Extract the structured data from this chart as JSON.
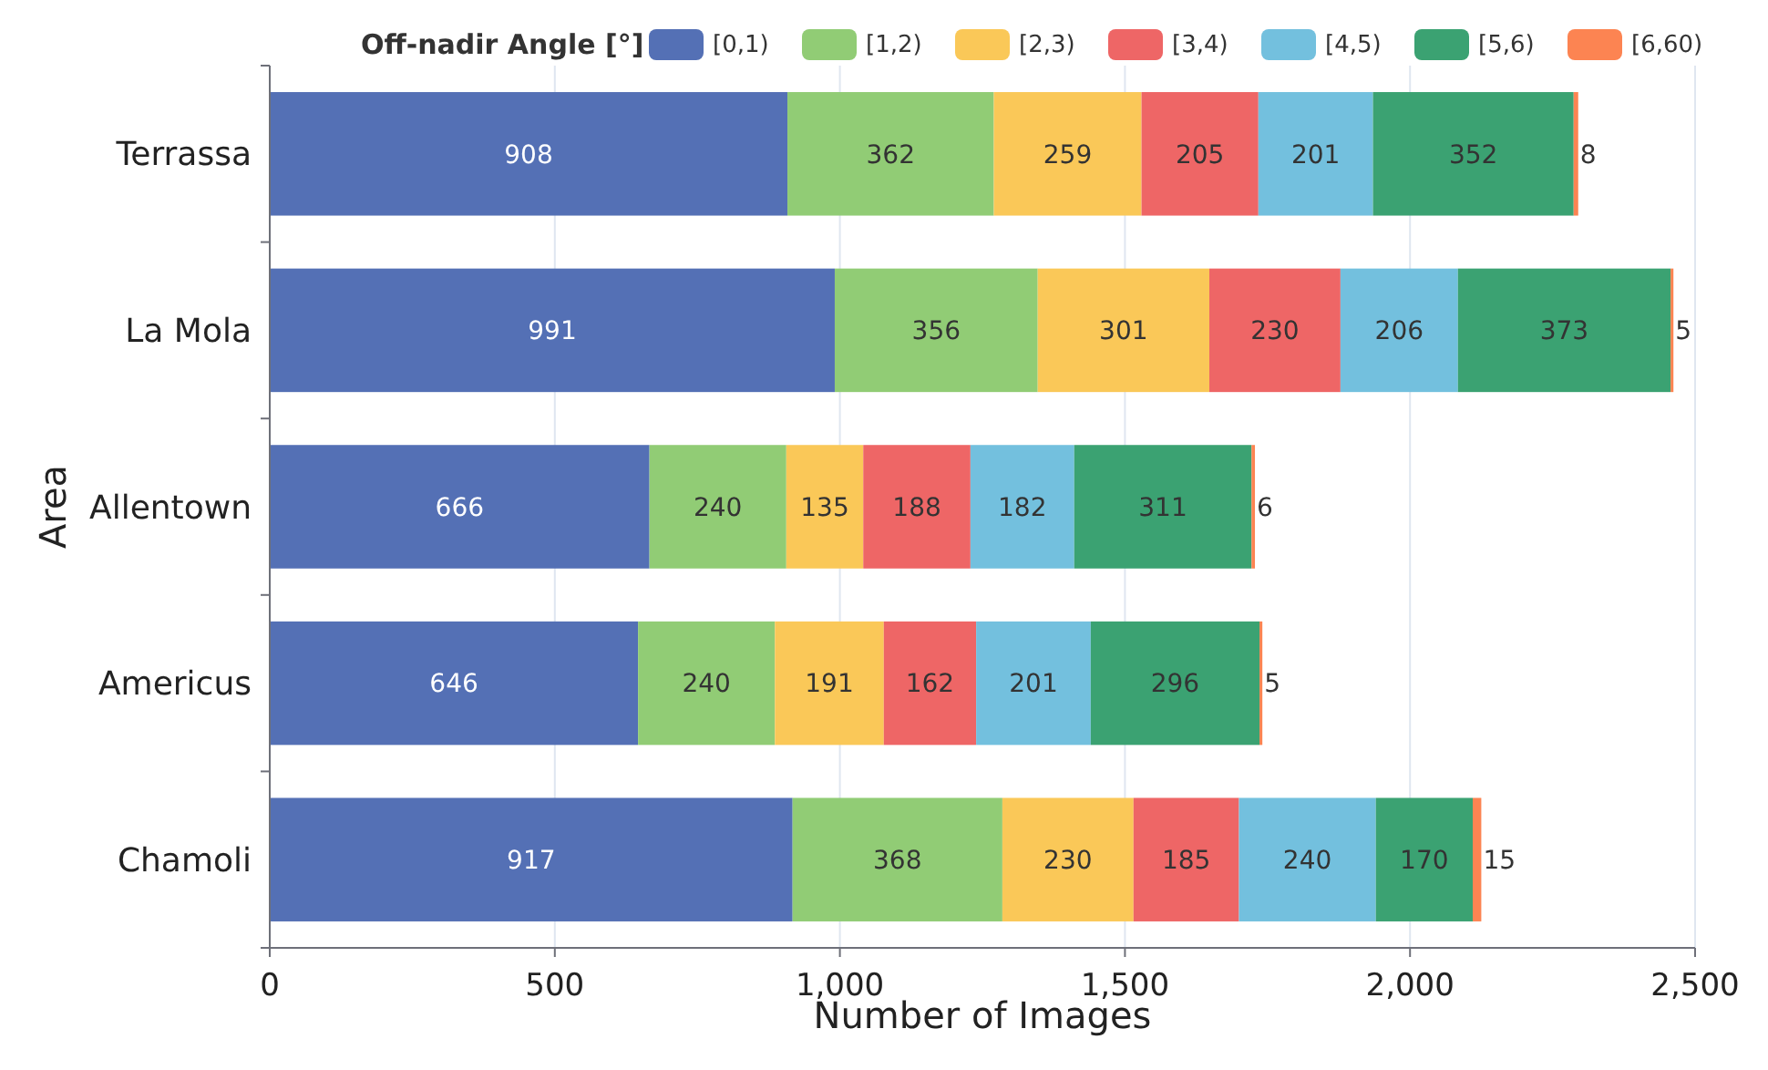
{
  "chart_data": {
    "type": "bar",
    "orientation": "horizontal",
    "stacked": true,
    "xlabel": "Number of Images",
    "ylabel": "Area",
    "legend_title": "Off-nadir Angle [°]",
    "legend": "top",
    "grid": "x",
    "data_labels": true,
    "categories": [
      "Terrassa",
      "La Mola",
      "Allentown",
      "Americus",
      "Chamoli"
    ],
    "xlim": [
      0,
      2500
    ],
    "xticks": [
      0,
      500,
      {
        "value": 1000,
        "label": "1,000"
      },
      {
        "value": 1500,
        "label": "1,500"
      },
      {
        "value": 2000,
        "label": "2,000"
      },
      {
        "value": 2500,
        "label": "2,500"
      }
    ],
    "series": [
      {
        "name": "[0,1)",
        "color": "#5470b5",
        "values": [
          908,
          991,
          666,
          646,
          917
        ]
      },
      {
        "name": "[1,2)",
        "color": "#91cc75",
        "values": [
          362,
          356,
          240,
          240,
          368
        ]
      },
      {
        "name": "[2,3)",
        "color": "#fac858",
        "values": [
          259,
          301,
          135,
          191,
          230
        ]
      },
      {
        "name": "[3,4)",
        "color": "#ee6666",
        "values": [
          205,
          230,
          188,
          162,
          185
        ]
      },
      {
        "name": "[4,5)",
        "color": "#73c0de",
        "values": [
          201,
          206,
          182,
          201,
          240
        ]
      },
      {
        "name": "[5,6)",
        "color": "#3ba272",
        "values": [
          352,
          373,
          311,
          296,
          170
        ]
      },
      {
        "name": "[6,60)",
        "color": "#fc8452",
        "values": [
          8,
          5,
          6,
          5,
          15
        ]
      }
    ]
  }
}
